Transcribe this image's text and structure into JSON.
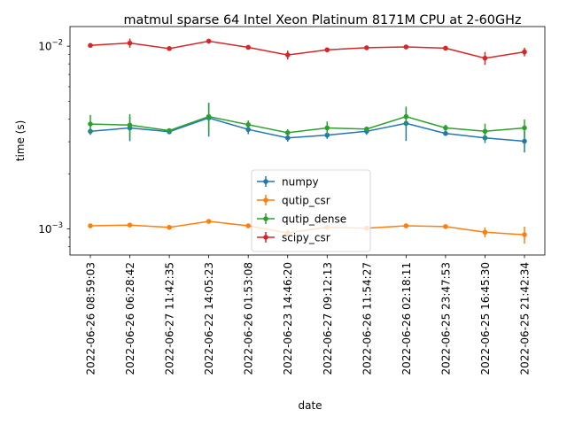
{
  "chart_data": {
    "type": "line",
    "title": "matmul sparse 64 Intel Xeon Platinum 8171M CPU at 2-60GHz",
    "xlabel": "date",
    "ylabel": "time (s)",
    "yscale": "log",
    "ylim": [
      0.00072,
      0.0128
    ],
    "y_ticks": [
      {
        "value": 0.001,
        "base": "10",
        "exp": "−3"
      },
      {
        "value": 0.01,
        "base": "10",
        "exp": "−2"
      }
    ],
    "grid": false,
    "legend": "center",
    "categories": [
      "2022-06-26 08:59:03",
      "2022-06-26 06:28:42",
      "2022-06-27 11:42:35",
      "2022-06-22 14:05:23",
      "2022-06-26 01:53:08",
      "2022-06-23 14:46:20",
      "2022-06-27 09:12:13",
      "2022-06-26 11:54:27",
      "2022-06-26 02:18:11",
      "2022-06-25 23:47:53",
      "2022-06-25 16:45:30",
      "2022-06-25 21:42:34"
    ],
    "series": [
      {
        "name": "numpy",
        "color": "#1f77b4",
        "values": [
          0.00342,
          0.00357,
          0.0034,
          0.00405,
          0.0035,
          0.00315,
          0.00326,
          0.00342,
          0.00378,
          0.00333,
          0.00315,
          0.00302
        ],
        "errors": [
          0.00015,
          0.00055,
          0.0001,
          0.00085,
          0.0002,
          0.00015,
          0.00015,
          0.00015,
          0.00075,
          0.0001,
          0.0002,
          0.0004
        ]
      },
      {
        "name": "qutip_csr",
        "color": "#ff7f0e",
        "values": [
          0.00104,
          0.00105,
          0.00102,
          0.0011,
          0.00104,
          0.00095,
          0.00102,
          0.00101,
          0.00104,
          0.00103,
          0.00096,
          0.00093
        ],
        "errors": [
          2e-05,
          2e-05,
          3e-05,
          2e-05,
          2e-05,
          4e-05,
          2e-05,
          2e-05,
          2e-05,
          2e-05,
          6e-05,
          0.0001
        ]
      },
      {
        "name": "qutip_dense",
        "color": "#2ca02c",
        "values": [
          0.00375,
          0.0037,
          0.00345,
          0.00412,
          0.00372,
          0.00336,
          0.00357,
          0.00352,
          0.00412,
          0.00357,
          0.00342,
          0.00357
        ],
        "errors": [
          0.00045,
          0.00055,
          0.0001,
          0.00075,
          0.0002,
          0.00015,
          0.0003,
          0.0001,
          0.00055,
          0.00015,
          0.00035,
          0.0004
        ]
      },
      {
        "name": "scipy_csr",
        "color": "#d62728",
        "values": [
          0.0101,
          0.0104,
          0.0097,
          0.01065,
          0.00985,
          0.00895,
          0.00955,
          0.0098,
          0.0099,
          0.00975,
          0.0086,
          0.0093
        ],
        "errors": [
          0.0002,
          0.0006,
          0.0002,
          0.0002,
          0.0002,
          0.0005,
          0.0003,
          0.0002,
          0.0002,
          0.0002,
          0.0007,
          0.0005
        ]
      }
    ]
  }
}
